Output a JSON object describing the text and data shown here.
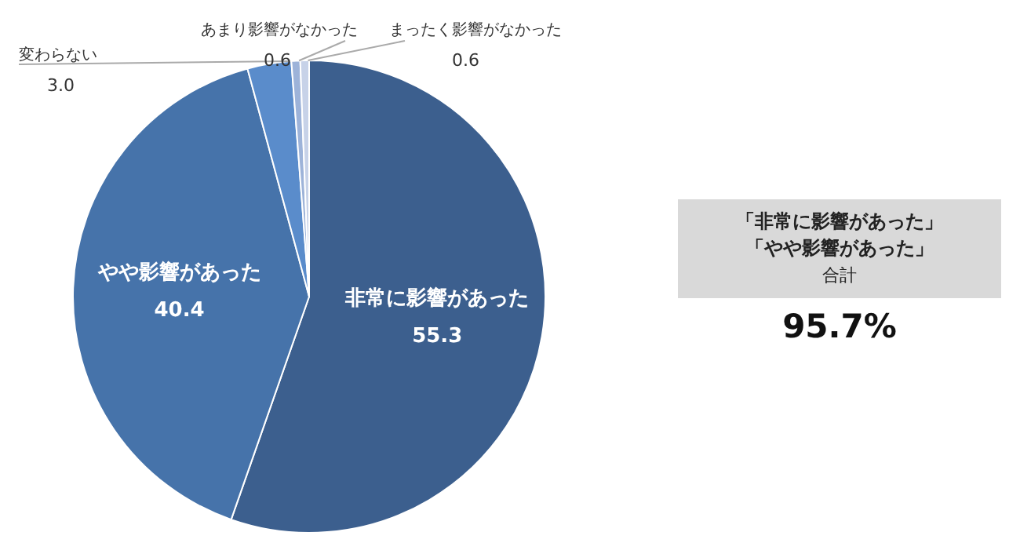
{
  "chart_data": {
    "type": "pie",
    "categories": [
      "非常に影響があった",
      "やや影響があった",
      "変わらない",
      "あまり影響がなかった",
      "まったく影響がなかった"
    ],
    "values": [
      55.3,
      40.4,
      3.0,
      0.6,
      0.6
    ],
    "colors": [
      "#3c5f8e",
      "#4673aa",
      "#5a8ccb",
      "#9db3d9",
      "#c7d2e8"
    ],
    "value_labels": [
      "55.3",
      "40.4",
      "3.0",
      "0.6",
      "0.6"
    ],
    "legend": false,
    "annotations": [
      "「非常に影響があった」",
      "「やや影響があった」",
      "合計",
      "95.7%"
    ]
  }
}
